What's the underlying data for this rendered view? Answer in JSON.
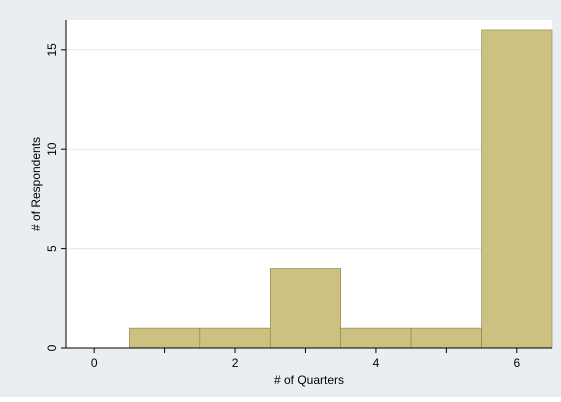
{
  "chart_data": {
    "type": "bar",
    "title": "",
    "xlabel": "# of Quarters",
    "ylabel": "# of Respondents",
    "x_ticks": [
      0,
      2,
      4,
      6
    ],
    "x_minor_ticks": [
      1,
      3,
      5
    ],
    "y_ticks": [
      0,
      5,
      10,
      15
    ],
    "xlim": [
      -0.4,
      6.5
    ],
    "ylim": [
      0,
      16.5
    ],
    "grid": true,
    "bars": [
      {
        "x": 1,
        "value": 1
      },
      {
        "x": 2,
        "value": 1
      },
      {
        "x": 3,
        "value": 4
      },
      {
        "x": 4,
        "value": 1
      },
      {
        "x": 5,
        "value": 1
      },
      {
        "x": 6,
        "value": 16
      }
    ],
    "bar_width": 1,
    "colors": {
      "background": "#e8eef2",
      "plot_area": "#ffffff",
      "bar_fill": "#cdc182",
      "bar_stroke": "#8a7f45",
      "grid": "#e2e8ec"
    }
  }
}
